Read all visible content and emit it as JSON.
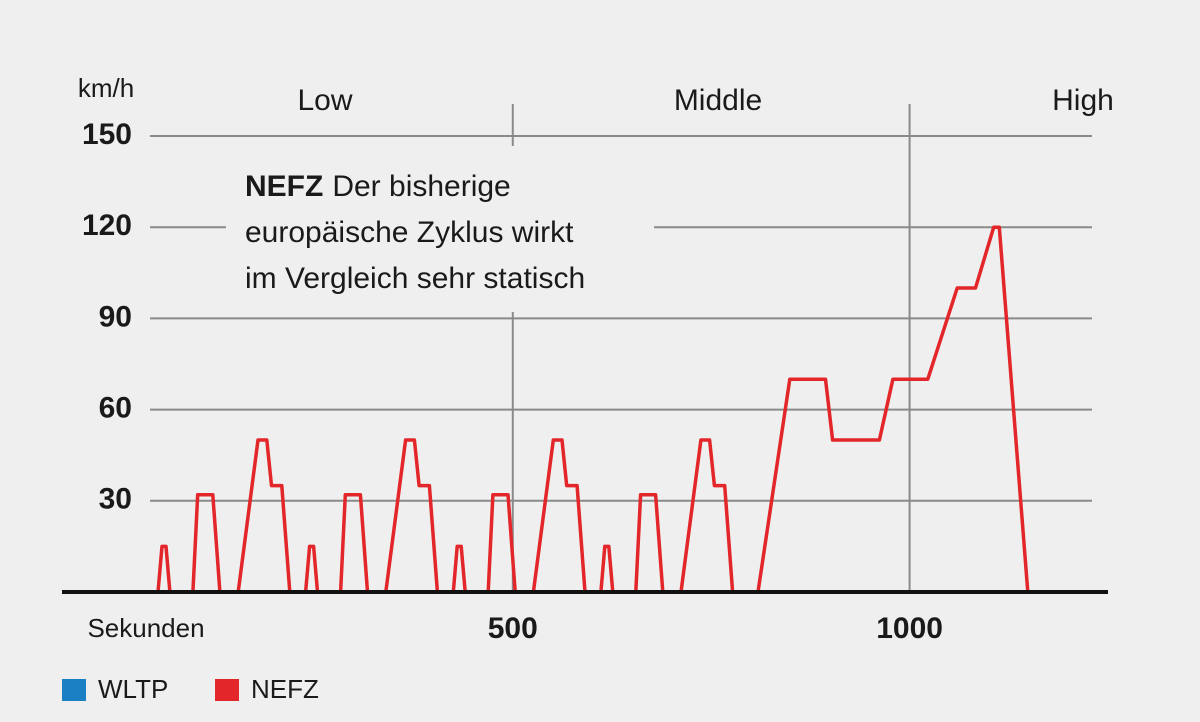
{
  "chart_data": {
    "type": "line",
    "y_label": "km/h",
    "x_label": "Sekunden",
    "phases": [
      "Low",
      "Middle",
      "High"
    ],
    "annotation": {
      "bold": "NEFZ",
      "lines": [
        "Der bisherige",
        "europäische Zyklus wirkt",
        "im Vergleich sehr statisch"
      ]
    },
    "xlim": [
      -68,
      1250
    ],
    "xticks": [
      500,
      1000
    ],
    "ylim": [
      0,
      150
    ],
    "yticks": [
      30,
      60,
      90,
      120,
      150
    ],
    "grid": true,
    "series": [
      {
        "name": "WLTP",
        "color": "#1b7fc4",
        "x": [],
        "values": []
      },
      {
        "name": "NEFZ",
        "color": "#e3262a",
        "x": [
          53,
          58,
          63,
          68,
          97,
          103,
          122,
          131,
          154,
          179,
          190,
          196,
          209,
          219,
          239,
          244,
          249,
          254,
          283,
          289,
          308,
          317,
          340,
          365,
          376,
          382,
          395,
          405,
          425,
          430,
          435,
          440,
          469,
          475,
          494,
          503,
          526,
          551,
          562,
          568,
          581,
          591,
          611,
          616,
          621,
          626,
          655,
          661,
          680,
          689,
          712,
          737,
          748,
          754,
          767,
          777,
          809,
          849,
          894,
          903,
          962,
          979,
          1023,
          1060,
          1083,
          1106,
          1113,
          1149
        ],
        "values": [
          0,
          15,
          15,
          0,
          0,
          32,
          32,
          0,
          0,
          50,
          50,
          35,
          35,
          0,
          0,
          15,
          15,
          0,
          0,
          32,
          32,
          0,
          0,
          50,
          50,
          35,
          35,
          0,
          0,
          15,
          15,
          0,
          0,
          32,
          32,
          0,
          0,
          50,
          50,
          35,
          35,
          0,
          0,
          15,
          15,
          0,
          0,
          32,
          32,
          0,
          0,
          50,
          50,
          35,
          35,
          0,
          0,
          70,
          70,
          50,
          50,
          70,
          70,
          100,
          100,
          120,
          120,
          0
        ]
      }
    ]
  }
}
